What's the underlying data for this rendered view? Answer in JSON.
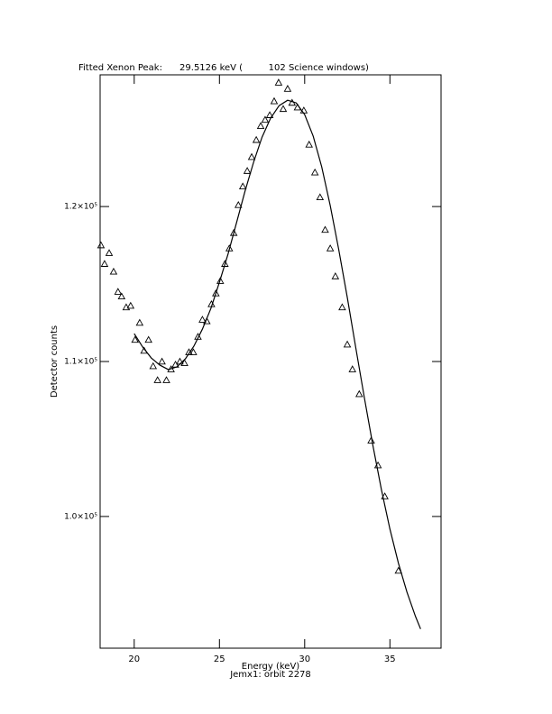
{
  "chart_data": {
    "type": "scatter",
    "title": "Fitted Xenon Peak:      29.5126 keV (         102 Science windows)",
    "x_label": "Energy (keV)",
    "x_sublabel": "Jemx1: orbit 2278",
    "y_label": "Detector counts",
    "xlim": [
      18,
      38
    ],
    "ylim": [
      91500,
      128500
    ],
    "xticks": [
      20,
      25,
      30,
      35
    ],
    "yticks": [
      {
        "value": 100000,
        "label": "1.0×10⁵"
      },
      {
        "value": 110000,
        "label": "1.1×10⁵"
      },
      {
        "value": 120000,
        "label": "1.2×10⁵"
      }
    ],
    "series": [
      {
        "style": "markers",
        "marker": "triangle",
        "color": "#000000",
        "x": [
          18.05,
          18.26,
          18.53,
          18.79,
          19.05,
          19.26,
          19.53,
          19.79,
          20.05,
          20.32,
          20.58,
          20.84,
          21.11,
          21.37,
          21.63,
          21.89,
          22.16,
          22.42,
          22.68,
          22.95,
          23.21,
          23.47,
          23.74,
          24.0,
          24.26,
          24.53,
          24.79,
          25.05,
          25.32,
          25.58,
          25.84,
          26.11,
          26.37,
          26.63,
          26.89,
          27.16,
          27.42,
          27.68,
          27.95,
          28.21,
          28.47,
          28.74,
          29.0,
          29.26,
          29.58,
          29.95,
          30.26,
          30.6,
          30.9,
          31.2,
          31.5,
          31.8,
          32.2,
          32.5,
          32.8,
          33.2,
          33.9,
          34.3,
          34.7,
          35.5
        ],
        "values": [
          117500,
          116300,
          117000,
          115800,
          114500,
          114200,
          113500,
          113600,
          111400,
          112500,
          110700,
          111400,
          109700,
          108800,
          110000,
          108800,
          109500,
          109800,
          110000,
          109900,
          110600,
          110600,
          111600,
          112700,
          112600,
          113700,
          114400,
          115200,
          116300,
          117300,
          118300,
          120100,
          121300,
          122300,
          123200,
          124300,
          125200,
          125600,
          125900,
          126800,
          128000,
          126300,
          127600,
          126700,
          126400,
          126200,
          124000,
          122200,
          120600,
          118500,
          117300,
          115500,
          113500,
          111100,
          109500,
          107900,
          104900,
          103300,
          101300,
          96500
        ]
      },
      {
        "style": "line",
        "color": "#000000",
        "x": [
          20.0,
          20.5,
          21.0,
          21.5,
          22.0,
          22.5,
          23.0,
          23.5,
          24.0,
          24.5,
          25.0,
          25.5,
          26.0,
          26.5,
          27.0,
          27.5,
          28.0,
          28.5,
          29.0,
          29.5,
          30.0,
          30.5,
          31.0,
          31.5,
          32.0,
          32.5,
          33.0,
          33.5,
          34.0,
          34.5,
          35.0,
          35.5,
          36.0,
          36.5,
          36.8
        ],
        "values": [
          111800,
          110930,
          110230,
          109770,
          109480,
          109650,
          110170,
          110990,
          112090,
          113430,
          115120,
          116920,
          118950,
          120990,
          122850,
          124480,
          125700,
          126510,
          126860,
          126690,
          125930,
          124540,
          122560,
          120060,
          117210,
          114130,
          110870,
          107670,
          104590,
          101740,
          99190,
          96980,
          95120,
          93550,
          92740
        ]
      }
    ]
  }
}
